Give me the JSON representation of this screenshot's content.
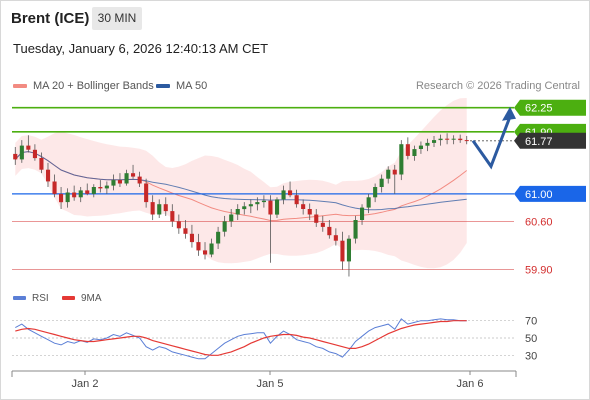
{
  "header": {
    "instrument": "Brent (ICE)",
    "timeframe": "30 MIN",
    "datetime": "Tuesday, January 6, 2026 12:40:13 AM CET"
  },
  "legend": {
    "ma20_label": "MA 20 + Bollinger Bands",
    "ma50_label": "MA 50",
    "credit": "Research © 2026 Trading Central",
    "colors": {
      "ma20": "#f28b82",
      "ma50": "#2c5aa0",
      "bands": "#fde2e2"
    }
  },
  "subchart": {
    "rsi_label": "RSI",
    "ma9_label": "9MA",
    "colors": {
      "rsi": "#5b7fd6",
      "ma9": "#e53935"
    }
  },
  "chart_data": {
    "type": "candlestick",
    "ylim": [
      59.75,
      62.42
    ],
    "x_labels": [
      "Jan 2",
      "Jan 5",
      "Jan 6"
    ],
    "price_levels": [
      {
        "value": "62.25",
        "kind": "resistance",
        "color": "#4caf10"
      },
      {
        "value": "61.90",
        "kind": "resistance",
        "color": "#4caf10"
      },
      {
        "value": "61.77",
        "kind": "last",
        "color": "#333333"
      },
      {
        "value": "61.00",
        "kind": "pivot",
        "color": "#1a66e8"
      },
      {
        "value": "60.60",
        "kind": "support",
        "color": "#d32f2f"
      },
      {
        "value": "59.90",
        "kind": "support",
        "color": "#d32f2f"
      }
    ],
    "candles": [
      [
        61.58,
        61.68,
        61.42,
        61.5
      ],
      [
        61.5,
        61.78,
        61.45,
        61.7
      ],
      [
        61.7,
        61.85,
        61.6,
        61.64
      ],
      [
        61.64,
        61.72,
        61.48,
        61.52
      ],
      [
        61.52,
        61.6,
        61.3,
        61.35
      ],
      [
        61.35,
        61.45,
        61.1,
        61.18
      ],
      [
        61.18,
        61.28,
        60.95,
        61.0
      ],
      [
        61.0,
        61.1,
        60.78,
        60.88
      ],
      [
        60.88,
        61.08,
        60.8,
        61.02
      ],
      [
        61.02,
        61.12,
        60.9,
        60.95
      ],
      [
        60.95,
        61.1,
        60.88,
        61.05
      ],
      [
        61.05,
        61.15,
        60.98,
        61.0
      ],
      [
        61.0,
        61.14,
        60.95,
        61.1
      ],
      [
        61.1,
        61.2,
        61.02,
        61.08
      ],
      [
        61.08,
        61.18,
        61.0,
        61.12
      ],
      [
        61.12,
        61.28,
        61.05,
        61.2
      ],
      [
        61.2,
        61.3,
        61.1,
        61.15
      ],
      [
        61.15,
        61.35,
        61.12,
        61.3
      ],
      [
        61.3,
        61.42,
        61.22,
        61.25
      ],
      [
        61.25,
        61.32,
        61.1,
        61.15
      ],
      [
        61.15,
        61.22,
        60.8,
        60.88
      ],
      [
        60.88,
        60.98,
        60.62,
        60.7
      ],
      [
        60.7,
        60.92,
        60.65,
        60.85
      ],
      [
        60.85,
        60.95,
        60.68,
        60.75
      ],
      [
        60.75,
        60.85,
        60.52,
        60.6
      ],
      [
        60.6,
        60.7,
        60.42,
        60.5
      ],
      [
        60.5,
        60.62,
        60.35,
        60.42
      ],
      [
        60.42,
        60.55,
        60.22,
        60.3
      ],
      [
        60.3,
        60.42,
        60.1,
        60.18
      ],
      [
        60.18,
        60.3,
        60.05,
        60.12
      ],
      [
        60.12,
        60.35,
        60.08,
        60.28
      ],
      [
        60.28,
        60.52,
        60.2,
        60.45
      ],
      [
        60.45,
        60.68,
        60.38,
        60.6
      ],
      [
        60.6,
        60.78,
        60.52,
        60.7
      ],
      [
        60.7,
        60.85,
        60.62,
        60.78
      ],
      [
        60.78,
        60.88,
        60.7,
        60.82
      ],
      [
        60.82,
        60.92,
        60.72,
        60.85
      ],
      [
        60.85,
        60.95,
        60.76,
        60.88
      ],
      [
        60.88,
        60.98,
        60.8,
        60.9
      ],
      [
        60.9,
        60.98,
        60.0,
        60.7
      ],
      [
        60.7,
        60.95,
        60.65,
        60.92
      ],
      [
        60.92,
        61.12,
        60.85,
        61.05
      ],
      [
        61.05,
        61.18,
        60.95,
        60.98
      ],
      [
        60.98,
        61.06,
        60.8,
        60.85
      ],
      [
        60.85,
        60.92,
        60.7,
        60.78
      ],
      [
        60.78,
        60.86,
        60.62,
        60.7
      ],
      [
        60.7,
        60.78,
        60.52,
        60.58
      ],
      [
        60.58,
        60.68,
        60.45,
        60.52
      ],
      [
        60.52,
        60.62,
        60.35,
        60.4
      ],
      [
        60.4,
        60.5,
        60.25,
        60.32
      ],
      [
        60.32,
        60.45,
        59.9,
        60.02
      ],
      [
        60.02,
        60.4,
        59.8,
        60.35
      ],
      [
        60.35,
        60.68,
        60.28,
        60.62
      ],
      [
        60.62,
        60.85,
        60.55,
        60.8
      ],
      [
        60.8,
        61.0,
        60.72,
        60.95
      ],
      [
        60.95,
        61.15,
        60.88,
        61.1
      ],
      [
        61.1,
        61.28,
        61.02,
        61.22
      ],
      [
        61.22,
        61.4,
        61.15,
        61.35
      ],
      [
        61.35,
        61.42,
        61.0,
        61.28
      ],
      [
        61.28,
        61.78,
        61.2,
        61.72
      ],
      [
        61.72,
        61.82,
        61.5,
        61.55
      ],
      [
        61.55,
        61.7,
        61.48,
        61.65
      ],
      [
        61.65,
        61.76,
        61.58,
        61.7
      ],
      [
        61.7,
        61.8,
        61.62,
        61.74
      ],
      [
        61.74,
        61.84,
        61.68,
        61.78
      ],
      [
        61.78,
        61.86,
        61.7,
        61.8
      ],
      [
        61.8,
        61.88,
        61.72,
        61.79
      ],
      [
        61.79,
        61.85,
        61.72,
        61.8
      ],
      [
        61.8,
        61.86,
        61.74,
        61.78
      ],
      [
        61.78,
        61.84,
        61.72,
        61.77
      ]
    ],
    "forecast": [
      61.77,
      61.4,
      62.25
    ],
    "rsi": {
      "ylim": [
        20,
        80
      ],
      "levels": [
        "70",
        "50",
        "30"
      ],
      "rsi_values": [
        62,
        66,
        60,
        56,
        52,
        48,
        44,
        42,
        46,
        44,
        47,
        45,
        49,
        48,
        50,
        54,
        52,
        56,
        53,
        50,
        40,
        36,
        40,
        38,
        34,
        32,
        30,
        28,
        26,
        26,
        32,
        38,
        44,
        48,
        52,
        54,
        55,
        56,
        56,
        44,
        52,
        58,
        54,
        48,
        46,
        44,
        40,
        38,
        34,
        32,
        28,
        36,
        46,
        52,
        58,
        62,
        64,
        66,
        60,
        72,
        66,
        68,
        70,
        70,
        71,
        72,
        71,
        71,
        70,
        70
      ],
      "ma9_values": [
        58,
        60,
        61,
        60,
        58,
        56,
        54,
        52,
        50,
        48,
        47,
        46,
        46,
        47,
        48,
        49,
        50,
        51,
        52,
        52,
        50,
        47,
        45,
        43,
        41,
        39,
        37,
        35,
        33,
        31,
        30,
        30,
        32,
        34,
        37,
        40,
        44,
        47,
        50,
        52,
        53,
        54,
        54,
        53,
        51,
        50,
        48,
        46,
        44,
        42,
        40,
        38,
        38,
        40,
        43,
        47,
        51,
        55,
        58,
        61,
        63,
        65,
        66,
        67,
        68,
        69,
        69,
        70,
        70,
        70
      ]
    }
  }
}
